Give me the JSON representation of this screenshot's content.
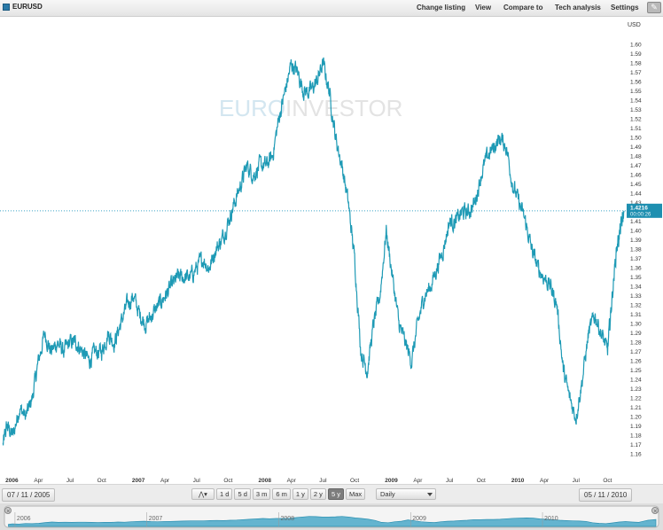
{
  "header": {
    "ticker": "EURUSD",
    "menu": [
      "Change listing",
      "View",
      "Compare to",
      "Tech analysis",
      "Settings"
    ]
  },
  "watermark": {
    "part1": "EURO",
    "part2": "INVESTOR"
  },
  "price_label": {
    "value": "1.4216",
    "time": "00:00:26"
  },
  "footer": {
    "start_date": "07 / 11 / 2005",
    "end_date": "05 / 11 / 2010",
    "ranges": [
      "1 d",
      "5 d",
      "3 m",
      "6 m",
      "1 y",
      "2 y",
      "5 y",
      "Max"
    ],
    "selected_range": "5 y",
    "interval": "Daily"
  },
  "navigator": {
    "years": [
      "2006",
      "2007",
      "2008",
      "2009",
      "2010"
    ]
  },
  "colors": {
    "line": "#1e9ab5",
    "accent": "#2a7aa8",
    "grid_dot": "#3fa5c6"
  },
  "chart_data": {
    "type": "line",
    "currency_label": "USD",
    "ylim": [
      1.15,
      1.61
    ],
    "yticks": [
      1.16,
      1.17,
      1.18,
      1.19,
      1.2,
      1.21,
      1.22,
      1.23,
      1.24,
      1.25,
      1.26,
      1.27,
      1.28,
      1.29,
      1.3,
      1.31,
      1.32,
      1.33,
      1.34,
      1.35,
      1.36,
      1.37,
      1.38,
      1.39,
      1.4,
      1.41,
      1.43,
      1.44,
      1.45,
      1.46,
      1.47,
      1.48,
      1.49,
      1.5,
      1.51,
      1.52,
      1.53,
      1.54,
      1.55,
      1.56,
      1.57,
      1.58,
      1.59,
      1.6
    ],
    "xticks": [
      {
        "label": "2006",
        "t": 0.04,
        "bold": true
      },
      {
        "label": "Apr",
        "t": 0.25
      },
      {
        "label": "Jul",
        "t": 0.5
      },
      {
        "label": "Oct",
        "t": 0.75
      },
      {
        "label": "2007",
        "t": 1.04,
        "bold": true
      },
      {
        "label": "Apr",
        "t": 1.25
      },
      {
        "label": "Jul",
        "t": 1.5
      },
      {
        "label": "Oct",
        "t": 1.75
      },
      {
        "label": "2008",
        "t": 2.04,
        "bold": true
      },
      {
        "label": "Apr",
        "t": 2.25
      },
      {
        "label": "Jul",
        "t": 2.5
      },
      {
        "label": "Oct",
        "t": 2.75
      },
      {
        "label": "2009",
        "t": 3.04,
        "bold": true
      },
      {
        "label": "Apr",
        "t": 3.25
      },
      {
        "label": "Jul",
        "t": 3.5
      },
      {
        "label": "Oct",
        "t": 3.75
      },
      {
        "label": "2010",
        "t": 4.04,
        "bold": true
      },
      {
        "label": "Apr",
        "t": 4.25
      },
      {
        "label": "Jul",
        "t": 4.5
      },
      {
        "label": "Oct",
        "t": 4.75
      }
    ],
    "t_range": [
      -0.04,
      4.88
    ],
    "current_value": 1.4216,
    "series": [
      {
        "points": [
          [
            -0.03,
            1.17
          ],
          [
            0.0,
            1.19
          ],
          [
            0.05,
            1.18
          ],
          [
            0.1,
            1.21
          ],
          [
            0.15,
            1.2
          ],
          [
            0.2,
            1.22
          ],
          [
            0.25,
            1.26
          ],
          [
            0.3,
            1.29
          ],
          [
            0.35,
            1.27
          ],
          [
            0.4,
            1.28
          ],
          [
            0.45,
            1.27
          ],
          [
            0.5,
            1.28
          ],
          [
            0.55,
            1.28
          ],
          [
            0.6,
            1.27
          ],
          [
            0.65,
            1.26
          ],
          [
            0.7,
            1.27
          ],
          [
            0.75,
            1.27
          ],
          [
            0.8,
            1.29
          ],
          [
            0.85,
            1.28
          ],
          [
            0.9,
            1.3
          ],
          [
            0.95,
            1.32
          ],
          [
            1.0,
            1.33
          ],
          [
            1.05,
            1.31
          ],
          [
            1.1,
            1.3
          ],
          [
            1.15,
            1.31
          ],
          [
            1.2,
            1.32
          ],
          [
            1.25,
            1.33
          ],
          [
            1.3,
            1.34
          ],
          [
            1.35,
            1.35
          ],
          [
            1.4,
            1.35
          ],
          [
            1.45,
            1.35
          ],
          [
            1.5,
            1.36
          ],
          [
            1.55,
            1.37
          ],
          [
            1.6,
            1.36
          ],
          [
            1.65,
            1.38
          ],
          [
            1.7,
            1.39
          ],
          [
            1.75,
            1.41
          ],
          [
            1.8,
            1.43
          ],
          [
            1.85,
            1.45
          ],
          [
            1.9,
            1.47
          ],
          [
            1.95,
            1.46
          ],
          [
            2.0,
            1.47
          ],
          [
            2.05,
            1.47
          ],
          [
            2.1,
            1.48
          ],
          [
            2.15,
            1.52
          ],
          [
            2.2,
            1.55
          ],
          [
            2.25,
            1.58
          ],
          [
            2.3,
            1.57
          ],
          [
            2.35,
            1.55
          ],
          [
            2.4,
            1.55
          ],
          [
            2.45,
            1.56
          ],
          [
            2.5,
            1.58
          ],
          [
            2.55,
            1.55
          ],
          [
            2.6,
            1.5
          ],
          [
            2.65,
            1.47
          ],
          [
            2.7,
            1.43
          ],
          [
            2.75,
            1.37
          ],
          [
            2.8,
            1.27
          ],
          [
            2.85,
            1.25
          ],
          [
            2.9,
            1.3
          ],
          [
            2.95,
            1.33
          ],
          [
            3.0,
            1.4
          ],
          [
            3.05,
            1.35
          ],
          [
            3.1,
            1.3
          ],
          [
            3.15,
            1.28
          ],
          [
            3.2,
            1.26
          ],
          [
            3.25,
            1.3
          ],
          [
            3.3,
            1.33
          ],
          [
            3.35,
            1.34
          ],
          [
            3.4,
            1.36
          ],
          [
            3.45,
            1.38
          ],
          [
            3.5,
            1.41
          ],
          [
            3.55,
            1.41
          ],
          [
            3.6,
            1.42
          ],
          [
            3.65,
            1.42
          ],
          [
            3.7,
            1.43
          ],
          [
            3.75,
            1.46
          ],
          [
            3.8,
            1.48
          ],
          [
            3.85,
            1.49
          ],
          [
            3.9,
            1.5
          ],
          [
            3.95,
            1.49
          ],
          [
            4.0,
            1.45
          ],
          [
            4.05,
            1.43
          ],
          [
            4.1,
            1.41
          ],
          [
            4.15,
            1.38
          ],
          [
            4.2,
            1.36
          ],
          [
            4.25,
            1.35
          ],
          [
            4.3,
            1.34
          ],
          [
            4.35,
            1.32
          ],
          [
            4.4,
            1.25
          ],
          [
            4.45,
            1.22
          ],
          [
            4.5,
            1.2
          ],
          [
            4.55,
            1.24
          ],
          [
            4.6,
            1.29
          ],
          [
            4.65,
            1.31
          ],
          [
            4.7,
            1.29
          ],
          [
            4.75,
            1.27
          ],
          [
            4.78,
            1.32
          ],
          [
            4.82,
            1.38
          ],
          [
            4.85,
            1.4
          ],
          [
            4.88,
            1.42
          ]
        ]
      }
    ]
  }
}
